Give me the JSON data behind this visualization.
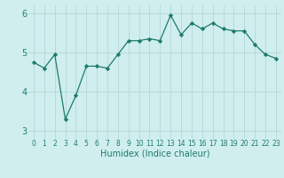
{
  "x": [
    0,
    1,
    2,
    3,
    4,
    5,
    6,
    7,
    8,
    9,
    10,
    11,
    12,
    13,
    14,
    15,
    16,
    17,
    18,
    19,
    20,
    21,
    22,
    23
  ],
  "y": [
    4.75,
    4.6,
    4.95,
    3.3,
    3.9,
    4.65,
    4.65,
    4.6,
    4.95,
    5.3,
    5.3,
    5.35,
    5.3,
    5.95,
    5.45,
    5.75,
    5.6,
    5.75,
    5.6,
    5.55,
    5.55,
    5.2,
    4.95,
    4.85
  ],
  "line_color": "#1e7b6b",
  "marker_color": "#1e7b6b",
  "bg_color": "#d0eeee",
  "grid_color": "#b8dada",
  "xlabel": "Humidex (Indice chaleur)",
  "xlim": [
    -0.5,
    23.5
  ],
  "ylim": [
    2.8,
    6.2
  ],
  "yticks": [
    3,
    4,
    5,
    6
  ],
  "xticks": [
    0,
    1,
    2,
    3,
    4,
    5,
    6,
    7,
    8,
    9,
    10,
    11,
    12,
    13,
    14,
    15,
    16,
    17,
    18,
    19,
    20,
    21,
    22,
    23
  ],
  "tick_color": "#1e7b6b",
  "xlabel_fontsize": 7,
  "ytick_fontsize": 7,
  "xtick_fontsize": 5.5
}
